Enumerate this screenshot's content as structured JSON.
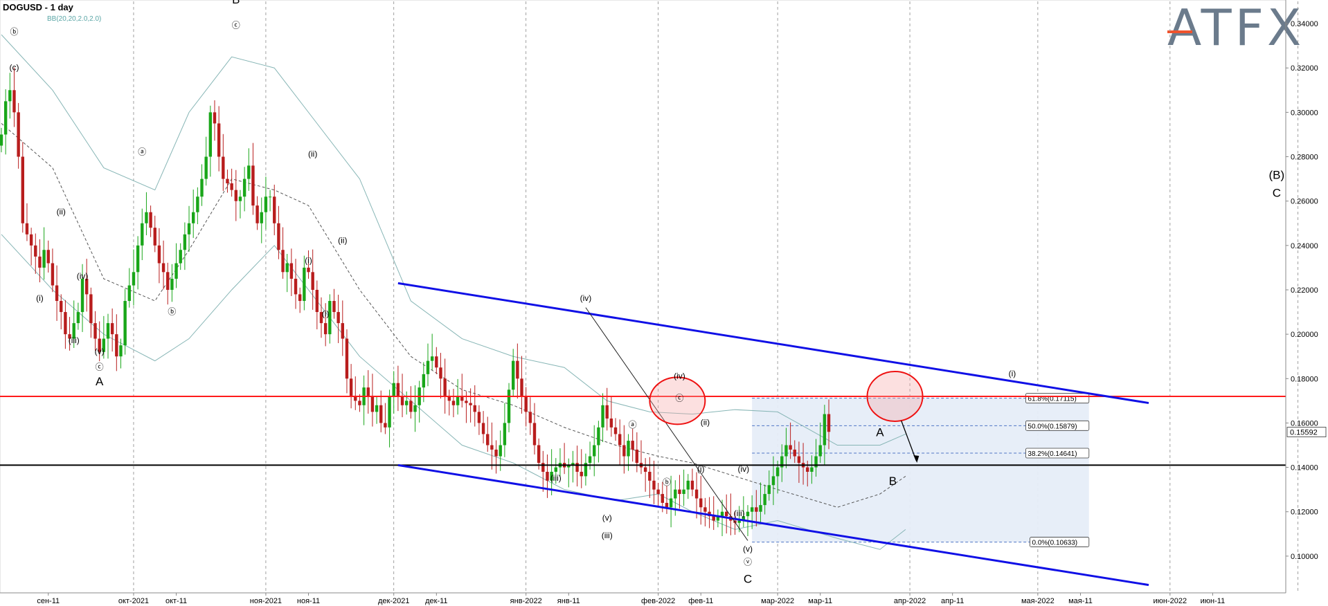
{
  "title": "DOGUSD - 1 day",
  "indicator": "BB(20,20,2.0,2.0)",
  "logo_text": "ATFX",
  "colors": {
    "bull": "#19a619",
    "bear": "#b81d1d",
    "band": "#86b5b5",
    "channel": "#1010e6",
    "resistance": "#ff1a1a",
    "support": "#000000",
    "fib_fill": "#e6edf8",
    "fib_line": "#4d74c4"
  },
  "chart_data": {
    "type": "candlestick",
    "title": "DOGUSD - 1 day",
    "ylim": [
      0.085,
      0.35
    ],
    "y_ticks": [
      "0.10000",
      "0.12000",
      "0.14000",
      "0.16000",
      "0.18000",
      "0.20000",
      "0.22000",
      "0.24000",
      "0.26000",
      "0.28000",
      "0.30000",
      "0.32000",
      "0.34000"
    ],
    "last_price": "0.15592",
    "x_ticks": [
      {
        "label": "сен-11",
        "day": 11
      },
      {
        "label": "окт-2021",
        "day": 31
      },
      {
        "label": "окт-11",
        "day": 41
      },
      {
        "label": "ноя-2021",
        "day": 62
      },
      {
        "label": "ноя-11",
        "day": 72
      },
      {
        "label": "дек-2021",
        "day": 92
      },
      {
        "label": "дек-11",
        "day": 102
      },
      {
        "label": "янв-2022",
        "day": 123
      },
      {
        "label": "янв-11",
        "day": 133
      },
      {
        "label": "фев-2022",
        "day": 154
      },
      {
        "label": "фев-11",
        "day": 164
      },
      {
        "label": "мар-2022",
        "day": 182
      },
      {
        "label": "мар-11",
        "day": 192
      },
      {
        "label": "апр-2022",
        "day": 213
      },
      {
        "label": "апр-11",
        "day": 223
      },
      {
        "label": "мая-2022",
        "day": 243
      },
      {
        "label": "мая-11",
        "day": 253
      },
      {
        "label": "июн-2022",
        "day": 274
      },
      {
        "label": "июн-11",
        "day": 284
      }
    ],
    "grid_days": [
      31,
      62,
      92,
      123,
      154,
      182,
      213,
      243,
      274,
      304
    ],
    "candles_close": [
      0.29,
      0.305,
      0.31,
      0.3,
      0.28,
      0.25,
      0.245,
      0.24,
      0.235,
      0.23,
      0.238,
      0.232,
      0.222,
      0.215,
      0.21,
      0.2,
      0.198,
      0.205,
      0.21,
      0.225,
      0.218,
      0.205,
      0.198,
      0.192,
      0.198,
      0.205,
      0.2,
      0.19,
      0.195,
      0.215,
      0.222,
      0.228,
      0.24,
      0.25,
      0.255,
      0.248,
      0.24,
      0.232,
      0.228,
      0.22,
      0.225,
      0.232,
      0.238,
      0.245,
      0.25,
      0.255,
      0.262,
      0.27,
      0.28,
      0.3,
      0.295,
      0.28,
      0.27,
      0.268,
      0.265,
      0.26,
      0.262,
      0.27,
      0.276,
      0.258,
      0.25,
      0.255,
      0.262,
      0.262,
      0.25,
      0.238,
      0.228,
      0.232,
      0.225,
      0.218,
      0.215,
      0.23,
      0.228,
      0.22,
      0.21,
      0.205,
      0.2,
      0.215,
      0.21,
      0.205,
      0.198,
      0.18,
      0.172,
      0.17,
      0.168,
      0.176,
      0.172,
      0.165,
      0.168,
      0.16,
      0.158,
      0.172,
      0.178,
      0.172,
      0.168,
      0.17,
      0.165,
      0.168,
      0.176,
      0.182,
      0.188,
      0.19,
      0.185,
      0.18,
      0.172,
      0.17,
      0.168,
      0.172,
      0.17,
      0.169,
      0.168,
      0.165,
      0.16,
      0.155,
      0.15,
      0.148,
      0.145,
      0.15,
      0.16,
      0.175,
      0.188,
      0.18,
      0.172,
      0.165,
      0.16,
      0.15,
      0.142,
      0.138,
      0.134,
      0.138,
      0.14,
      0.142,
      0.14,
      0.141,
      0.142,
      0.138,
      0.136,
      0.142,
      0.145,
      0.15,
      0.158,
      0.168,
      0.162,
      0.158,
      0.155,
      0.15,
      0.145,
      0.152,
      0.148,
      0.142,
      0.14,
      0.138,
      0.134,
      0.13,
      0.128,
      0.124,
      0.122,
      0.126,
      0.13,
      0.128,
      0.13,
      0.134,
      0.13,
      0.126,
      0.122,
      0.12,
      0.118,
      0.116,
      0.118,
      0.12,
      0.118,
      0.116,
      0.115,
      0.116,
      0.118,
      0.12,
      0.122,
      0.12,
      0.123,
      0.128,
      0.132,
      0.136,
      0.14,
      0.145,
      0.15,
      0.148,
      0.145,
      0.142,
      0.14,
      0.138,
      0.14,
      0.145,
      0.15,
      0.164,
      0.156
    ],
    "bollinger": {
      "upper": [
        [
          0,
          0.335
        ],
        [
          12,
          0.31
        ],
        [
          24,
          0.275
        ],
        [
          36,
          0.265
        ],
        [
          44,
          0.3
        ],
        [
          54,
          0.325
        ],
        [
          64,
          0.32
        ],
        [
          72,
          0.3
        ],
        [
          84,
          0.27
        ],
        [
          96,
          0.215
        ],
        [
          108,
          0.198
        ],
        [
          120,
          0.19
        ],
        [
          132,
          0.185
        ],
        [
          142,
          0.17
        ],
        [
          152,
          0.165
        ],
        [
          162,
          0.164
        ],
        [
          172,
          0.166
        ],
        [
          182,
          0.165
        ],
        [
          196,
          0.15
        ],
        [
          206,
          0.15
        ],
        [
          212,
          0.155
        ]
      ],
      "lower": [
        [
          0,
          0.245
        ],
        [
          12,
          0.22
        ],
        [
          24,
          0.2
        ],
        [
          36,
          0.188
        ],
        [
          44,
          0.198
        ],
        [
          54,
          0.22
        ],
        [
          64,
          0.24
        ],
        [
          72,
          0.22
        ],
        [
          84,
          0.19
        ],
        [
          96,
          0.17
        ],
        [
          108,
          0.15
        ],
        [
          120,
          0.142
        ],
        [
          132,
          0.13
        ],
        [
          144,
          0.125
        ],
        [
          154,
          0.128
        ],
        [
          162,
          0.12
        ],
        [
          172,
          0.112
        ],
        [
          182,
          0.116
        ],
        [
          196,
          0.108
        ],
        [
          206,
          0.103
        ],
        [
          212,
          0.112
        ]
      ],
      "middle": [
        [
          0,
          0.295
        ],
        [
          12,
          0.275
        ],
        [
          24,
          0.225
        ],
        [
          36,
          0.215
        ],
        [
          44,
          0.238
        ],
        [
          54,
          0.27
        ],
        [
          64,
          0.265
        ],
        [
          72,
          0.258
        ],
        [
          84,
          0.22
        ],
        [
          96,
          0.19
        ],
        [
          108,
          0.175
        ],
        [
          120,
          0.168
        ],
        [
          132,
          0.158
        ],
        [
          144,
          0.15
        ],
        [
          154,
          0.145
        ],
        [
          162,
          0.142
        ],
        [
          172,
          0.136
        ],
        [
          182,
          0.13
        ],
        [
          196,
          0.122
        ],
        [
          206,
          0.128
        ],
        [
          212,
          0.136
        ]
      ]
    },
    "horizontal_levels": [
      {
        "name": "resistance",
        "value": 0.172
      },
      {
        "name": "support",
        "value": 0.141
      }
    ],
    "channel": {
      "upper": [
        [
          93,
          0.223
        ],
        [
          269,
          0.169
        ]
      ],
      "lower": [
        [
          93,
          0.141
        ],
        [
          269,
          0.087
        ]
      ]
    },
    "fib": {
      "day_from": 176,
      "day_to": 255,
      "levels": [
        {
          "label": "61.8%(0.17115)",
          "value": 0.17115
        },
        {
          "label": "50.0%(0.15879)",
          "value": 0.15879
        },
        {
          "label": "38.2%(0.14641)",
          "value": 0.14641
        },
        {
          "label": "0.0%(0.10633)",
          "value": 0.10633
        }
      ]
    },
    "wave_labels": [
      {
        "text": "ⓑ",
        "day": 3,
        "value": 0.335
      },
      {
        "text": "(c)",
        "day": 3,
        "value": 0.319
      },
      {
        "text": "(i)",
        "day": 9,
        "value": 0.215
      },
      {
        "text": "(ii)",
        "day": 14,
        "value": 0.254
      },
      {
        "text": "(iv)",
        "day": 19,
        "value": 0.225
      },
      {
        "text": "(iii)",
        "day": 17,
        "value": 0.196
      },
      {
        "text": "(v)",
        "day": 23,
        "value": 0.191
      },
      {
        "text": "ⓒ",
        "day": 23,
        "value": 0.184
      },
      {
        "text": "A",
        "day": 23,
        "value": 0.177
      },
      {
        "text": "ⓐ",
        "day": 33,
        "value": 0.281
      },
      {
        "text": "ⓑ",
        "day": 40,
        "value": 0.209
      },
      {
        "text": "B",
        "day": 55,
        "value": 0.349
      },
      {
        "text": "ⓒ",
        "day": 55,
        "value": 0.338
      },
      {
        "text": "(ii)",
        "day": 73,
        "value": 0.28
      },
      {
        "text": "(i)",
        "day": 72,
        "value": 0.232
      },
      {
        "text": "(ii)",
        "day": 80,
        "value": 0.241
      },
      {
        "text": "(i)",
        "day": 76,
        "value": 0.208
      },
      {
        "text": "(iv)",
        "day": 137,
        "value": 0.215
      },
      {
        "text": "ⓐ",
        "day": 148,
        "value": 0.158
      },
      {
        "text": "ⓑ",
        "day": 156,
        "value": 0.132
      },
      {
        "text": "(iii)",
        "day": 130,
        "value": 0.134
      },
      {
        "text": "(v)",
        "day": 142,
        "value": 0.116
      },
      {
        "text": "(iii)",
        "day": 142,
        "value": 0.108
      },
      {
        "text": "(iv)",
        "day": 159,
        "value": 0.18
      },
      {
        "text": "ⓒ",
        "day": 159,
        "value": 0.17
      },
      {
        "text": "(ii)",
        "day": 165,
        "value": 0.159
      },
      {
        "text": "(i)",
        "day": 164,
        "value": 0.138
      },
      {
        "text": "(iv)",
        "day": 174,
        "value": 0.138
      },
      {
        "text": "(iii)",
        "day": 173,
        "value": 0.118
      },
      {
        "text": "(v)",
        "day": 175,
        "value": 0.102
      },
      {
        "text": "ⓥ",
        "day": 175,
        "value": 0.096
      },
      {
        "text": "C",
        "day": 175,
        "value": 0.088
      },
      {
        "text": "A",
        "day": 206,
        "value": 0.154
      },
      {
        "text": "B",
        "day": 209,
        "value": 0.132
      },
      {
        "text": "(i)",
        "day": 237,
        "value": 0.181
      },
      {
        "text": "(B)",
        "day": 299,
        "value": 0.27
      },
      {
        "text": "C",
        "day": 299,
        "value": 0.262
      }
    ]
  }
}
